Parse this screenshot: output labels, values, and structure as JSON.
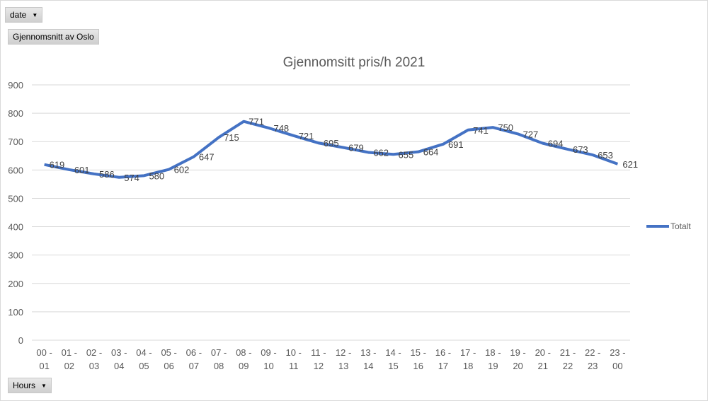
{
  "filters": {
    "date_label": "date",
    "value_field_label": "Gjennomsnitt av Oslo",
    "hours_label": "Hours"
  },
  "colors": {
    "series": "#4472c4",
    "grid": "#d9d9d9"
  },
  "chart_data": {
    "type": "line",
    "title": "Gjennomsitt pris/h 2021",
    "xlabel": "",
    "ylabel": "",
    "ylim": [
      0,
      900
    ],
    "yticks": [
      0,
      100,
      200,
      300,
      400,
      500,
      600,
      700,
      800,
      900
    ],
    "grid": true,
    "legend_position": "right",
    "categories": [
      [
        "00 -",
        "01"
      ],
      [
        "01 -",
        "02"
      ],
      [
        "02 -",
        "03"
      ],
      [
        "03 -",
        "04"
      ],
      [
        "04 -",
        "05"
      ],
      [
        "05 -",
        "06"
      ],
      [
        "06 -",
        "07"
      ],
      [
        "07 -",
        "08"
      ],
      [
        "08 -",
        "09"
      ],
      [
        "09 -",
        "10"
      ],
      [
        "10 -",
        "11"
      ],
      [
        "11 -",
        "12"
      ],
      [
        "12 -",
        "13"
      ],
      [
        "13 -",
        "14"
      ],
      [
        "14 -",
        "15"
      ],
      [
        "15 -",
        "16"
      ],
      [
        "16 -",
        "17"
      ],
      [
        "17 -",
        "18"
      ],
      [
        "18 -",
        "19"
      ],
      [
        "19 -",
        "20"
      ],
      [
        "20 -",
        "21"
      ],
      [
        "21 -",
        "22"
      ],
      [
        "22 -",
        "23"
      ],
      [
        "23 -",
        "00"
      ]
    ],
    "series": [
      {
        "name": "Totalt",
        "values": [
          619,
          601,
          586,
          574,
          580,
          602,
          647,
          715,
          771,
          748,
          721,
          695,
          679,
          662,
          655,
          664,
          691,
          741,
          750,
          727,
          694,
          673,
          653,
          621
        ]
      }
    ]
  }
}
